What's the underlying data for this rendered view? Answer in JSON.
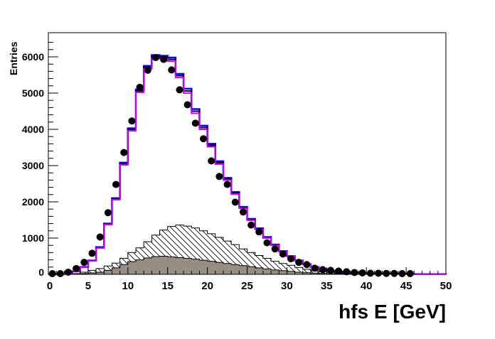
{
  "chart_data": {
    "type": "histogram",
    "xlabel": "hfs E [GeV]",
    "ylabel": "Entries",
    "xlim": [
      0,
      50
    ],
    "ylim": [
      0,
      6500
    ],
    "xticks": [
      0,
      5,
      10,
      15,
      20,
      25,
      30,
      35,
      40,
      45,
      50
    ],
    "yticks": [
      0,
      1000,
      2000,
      3000,
      4000,
      5000,
      6000
    ],
    "bin_edges_start": 0,
    "bin_width": 1,
    "data_points": {
      "x": [
        0.5,
        1.5,
        2.5,
        3.5,
        4.5,
        5.5,
        6.5,
        7.5,
        8.5,
        9.5,
        10.5,
        11.5,
        12.5,
        13.5,
        14.5,
        15.5,
        16.5,
        17.5,
        18.5,
        19.5,
        20.5,
        21.5,
        22.5,
        23.5,
        24.5,
        25.5,
        26.5,
        27.5,
        28.5,
        29.5,
        30.5,
        31.5,
        32.5,
        33.5,
        34.5,
        35.5,
        36.5,
        37.5,
        38.5,
        39.5,
        40.5,
        41.5,
        42.5,
        43.5,
        44.5,
        45.5
      ],
      "y": [
        20,
        20,
        60,
        160,
        330,
        580,
        1030,
        1700,
        2480,
        3360,
        4230,
        5160,
        5630,
        5980,
        5930,
        5640,
        5090,
        4680,
        4170,
        3740,
        3130,
        2700,
        2480,
        1990,
        1720,
        1360,
        1170,
        870,
        700,
        560,
        430,
        330,
        270,
        170,
        130,
        110,
        90,
        70,
        50,
        40,
        30,
        30,
        25,
        25,
        20,
        20
      ],
      "color": "#000000"
    },
    "series": [
      {
        "style": "line",
        "color": "#0000ff",
        "values": [
          0,
          0,
          20,
          80,
          200,
          380,
          750,
          1400,
          2100,
          3080,
          4030,
          5100,
          5750,
          6050,
          6030,
          5980,
          5530,
          5120,
          4560,
          4100,
          3600,
          3120,
          2660,
          2270,
          1860,
          1530,
          1270,
          1030,
          820,
          640,
          500,
          380,
          280,
          200,
          140,
          100,
          70,
          50,
          35,
          25,
          20,
          18,
          16,
          14,
          12,
          10,
          8,
          6,
          5,
          4
        ]
      },
      {
        "style": "line",
        "color": "#000000",
        "values": [
          0,
          0,
          20,
          78,
          196,
          374,
          738,
          1385,
          2080,
          3050,
          3995,
          5060,
          5710,
          6000,
          5990,
          5930,
          5480,
          5060,
          4500,
          4050,
          3560,
          3080,
          2630,
          2240,
          1840,
          1510,
          1255,
          1015,
          810,
          630,
          495,
          375,
          276,
          197,
          138,
          98,
          69,
          49,
          34,
          25,
          20,
          18,
          16,
          14,
          12,
          10,
          8,
          6,
          5,
          4
        ]
      },
      {
        "style": "line",
        "color": "#cc00ff",
        "values": [
          0,
          0,
          20,
          76,
          192,
          368,
          726,
          1370,
          2060,
          3020,
          3960,
          5020,
          5670,
          5950,
          5950,
          5880,
          5430,
          5000,
          4440,
          4000,
          3520,
          3040,
          2600,
          2210,
          1820,
          1490,
          1240,
          1000,
          800,
          620,
          490,
          370,
          272,
          194,
          136,
          96,
          68,
          48,
          33,
          24,
          19,
          17,
          15,
          13,
          11,
          9,
          7,
          6,
          5,
          4
        ]
      },
      {
        "style": "hatched",
        "color": "#000000",
        "values": [
          0,
          0,
          0,
          20,
          60,
          110,
          160,
          230,
          310,
          440,
          600,
          730,
          900,
          1080,
          1220,
          1320,
          1360,
          1330,
          1280,
          1200,
          1120,
          1020,
          920,
          820,
          700,
          600,
          520,
          440,
          360,
          300,
          250,
          190,
          140,
          100,
          70,
          50,
          35,
          25,
          18,
          12,
          8,
          5,
          3,
          2,
          1,
          0,
          0,
          0,
          0,
          0
        ]
      },
      {
        "style": "filled",
        "color": "#988d83",
        "values": [
          0,
          0,
          0,
          5,
          20,
          40,
          60,
          110,
          180,
          270,
          350,
          400,
          450,
          490,
          500,
          480,
          460,
          440,
          420,
          390,
          360,
          330,
          300,
          270,
          240,
          210,
          180,
          150,
          120,
          100,
          80,
          60,
          45,
          35,
          25,
          18,
          12,
          8,
          5,
          3,
          2,
          1,
          0,
          0,
          0,
          0,
          0,
          0,
          0,
          0
        ]
      }
    ]
  }
}
